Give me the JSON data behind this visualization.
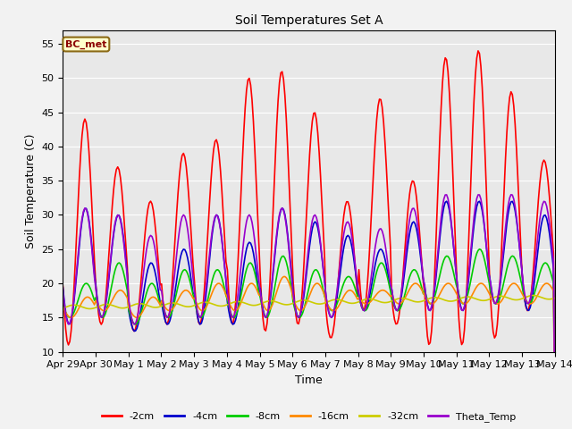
{
  "title": "Soil Temperatures Set A",
  "xlabel": "Time",
  "ylabel": "Soil Temperature (C)",
  "ylim": [
    10,
    57
  ],
  "yticks": [
    10,
    15,
    20,
    25,
    30,
    35,
    40,
    45,
    50,
    55
  ],
  "annotation": "BC_met",
  "fig_bg": "#f2f2f2",
  "plot_bg": "#e8e8e8",
  "legend_entries": [
    "-2cm",
    "-4cm",
    "-8cm",
    "-16cm",
    "-32cm",
    "Theta_Temp"
  ],
  "line_colors": [
    "#ff0000",
    "#0000cc",
    "#00cc00",
    "#ff8800",
    "#cccc00",
    "#9900cc"
  ],
  "num_days": 15,
  "hours_per_day": 24
}
